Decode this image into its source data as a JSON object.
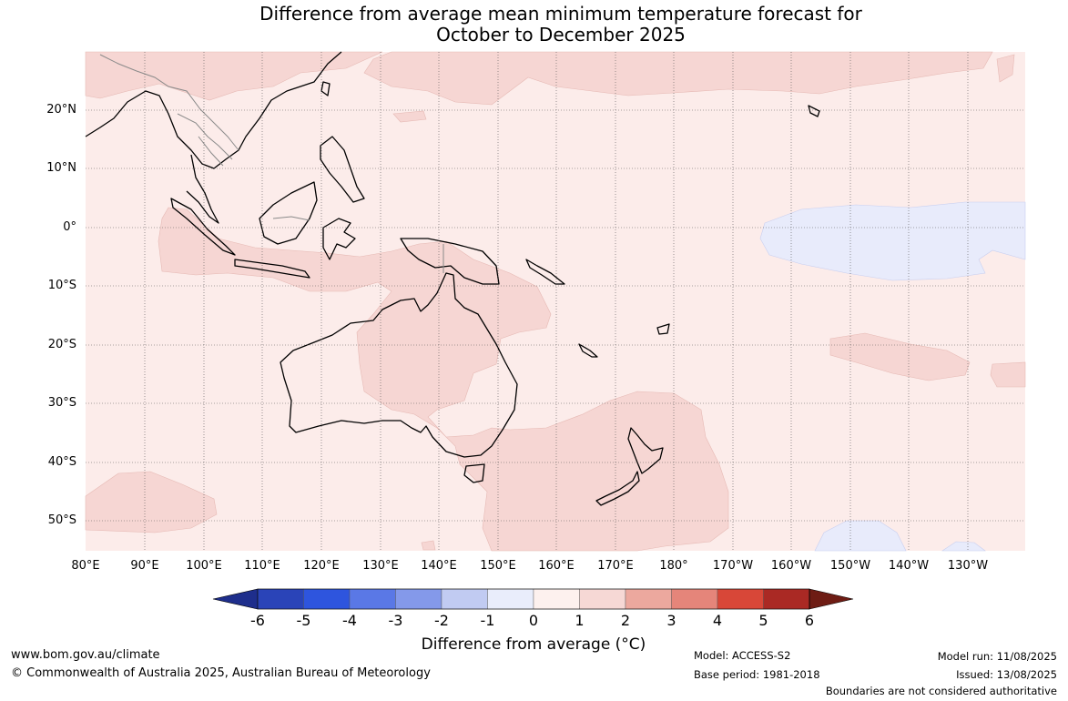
{
  "title_line1": "Difference from average mean minimum temperature forecast for",
  "title_line2": "October to December 2025",
  "lat_labels": [
    "20°N",
    "10°N",
    "0°",
    "10°S",
    "20°S",
    "30°S",
    "40°S",
    "50°S"
  ],
  "lon_labels": [
    "80°E",
    "90°E",
    "100°E",
    "110°E",
    "120°E",
    "130°E",
    "140°E",
    "150°E",
    "160°E",
    "170°E",
    "180°",
    "170°W",
    "160°W",
    "150°W",
    "140°W",
    "130°W"
  ],
  "colorbar": {
    "ticks": [
      "-6",
      "-5",
      "-4",
      "-3",
      "-2",
      "-1",
      "0",
      "1",
      "2",
      "3",
      "4",
      "5",
      "6"
    ],
    "colors": [
      "#1e2e8c",
      "#2a44b8",
      "#2e55de",
      "#5a78e6",
      "#8499ea",
      "#c1cbf2",
      "#e9edfb",
      "#fdf1ee",
      "#f6d8d5",
      "#eca89e",
      "#e5857a",
      "#d84738",
      "#aa2924",
      "#6e1c14"
    ],
    "label": "Difference from average (°C)"
  },
  "footer": {
    "website": "www.bom.gov.au/climate",
    "copyright": "© Commonwealth of Australia 2025, Australian Bureau of Meteorology",
    "model": "Model: ACCESS-S2",
    "base_period": "Base period: 1981-2018",
    "model_run": "Model run: 11/08/2025",
    "issued": "Issued: 13/08/2025",
    "disclaimer": "Boundaries are not considered authoritative"
  },
  "map_colors": {
    "ocean": "#fcecea",
    "warm_anomaly": "#f6d6d3",
    "cool_anomaly": "#e8ebfb",
    "coast": "#000000",
    "border": "#8a8a8a",
    "grid": "#555555"
  }
}
